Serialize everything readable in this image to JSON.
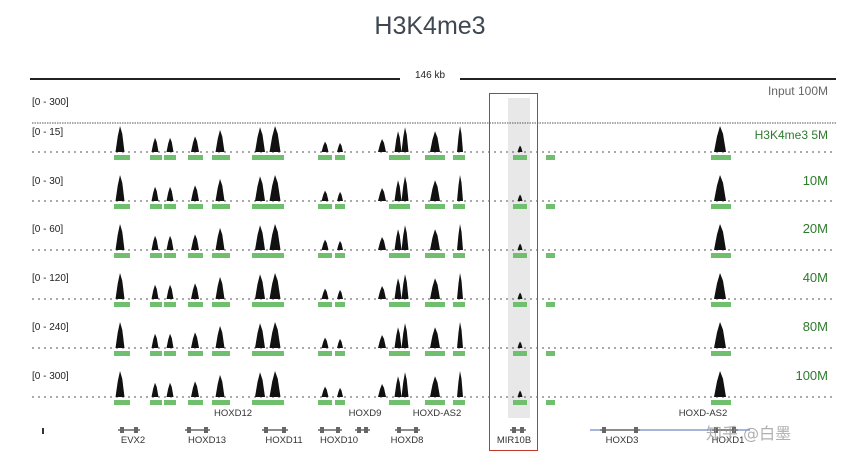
{
  "title": "H3K4me3",
  "scale_bar": {
    "label": "146 kb"
  },
  "tracks": [
    {
      "range": "[0 - 300]",
      "name": "Input 100M",
      "type": "input"
    },
    {
      "range": "[0 - 15]",
      "name": "H3K4me3 5M",
      "type": "signal"
    },
    {
      "range": "[0 - 30]",
      "name": "10M",
      "type": "signal"
    },
    {
      "range": "[0 - 60]",
      "name": "20M",
      "type": "signal"
    },
    {
      "range": "[0 - 120]",
      "name": "40M",
      "type": "signal"
    },
    {
      "range": "[0 - 240]",
      "name": "80M",
      "type": "signal"
    },
    {
      "range": "[0 - 300]",
      "name": "100M",
      "type": "signal"
    }
  ],
  "genes_top": [
    "HOXD12",
    "HOXD9",
    "HOXD-AS2",
    "HOXD-AS2"
  ],
  "genes_bottom": [
    "EVX2",
    "HOXD13",
    "HOXD11",
    "HOXD10",
    "HOXD8",
    "MIR10B",
    "HOXD3",
    "HOXD1"
  ],
  "highlight": {
    "gene": "MIR10B",
    "color": "#c0392b"
  },
  "colors": {
    "peak": "#111111",
    "peak_call": "#6fbf6f",
    "track_name": "#2d7a2d"
  },
  "watermark": "知乎 @白墨"
}
